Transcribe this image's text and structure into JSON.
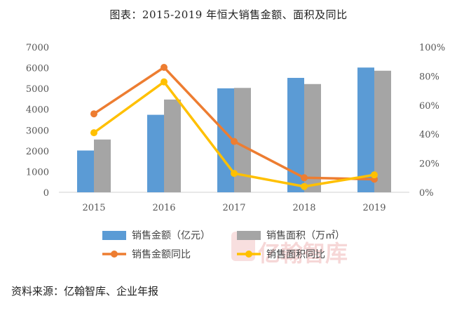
{
  "title": "图表：2015-2019 年恒大销售金额、面积及同比",
  "source": "资料来源：亿翰智库、企业年报",
  "watermark": "亿翰智库",
  "colors": {
    "sales_amount": "#5b9bd5",
    "sales_area": "#a5a5a5",
    "amount_yoy": "#ed7d31",
    "area_yoy": "#ffc000"
  },
  "chart_data": {
    "type": "bar",
    "categories": [
      "2015",
      "2016",
      "2017",
      "2018",
      "2019"
    ],
    "left_axis": {
      "ylim": [
        0,
        7000
      ],
      "ticks": [
        "0",
        "1000",
        "2000",
        "3000",
        "4000",
        "5000",
        "6000",
        "7000"
      ]
    },
    "right_axis": {
      "ylim": [
        0,
        100
      ],
      "ticks": [
        "0%",
        "20%",
        "40%",
        "60%",
        "80%",
        "100%"
      ]
    },
    "grid": false,
    "legend_position": "bottom",
    "series": [
      {
        "name": "销售金额（亿元）",
        "type": "bar",
        "axis": "left",
        "values": [
          2013,
          3734,
          5010,
          5513,
          6011
        ]
      },
      {
        "name": "销售面积（万㎡）",
        "type": "bar",
        "axis": "left",
        "values": [
          2543,
          4469,
          5030,
          5216,
          5858
        ]
      },
      {
        "name": "销售金额同比",
        "type": "line",
        "axis": "right",
        "values": [
          54,
          86,
          35,
          10,
          9
        ]
      },
      {
        "name": "销售面积同比",
        "type": "line",
        "axis": "right",
        "values": [
          41,
          76,
          13,
          4,
          12
        ]
      }
    ]
  }
}
